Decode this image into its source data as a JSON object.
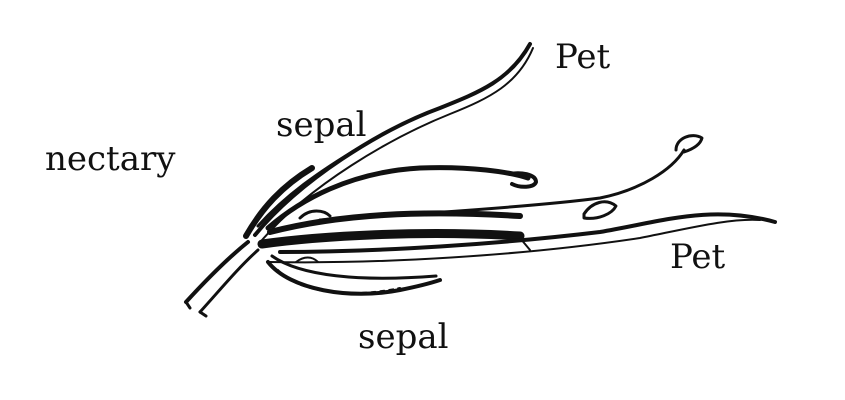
{
  "labels": {
    "pet_top": "Pet",
    "sepal_top": "sepal",
    "nectary": "nectary",
    "pet_right": "Pet",
    "sepal_bottom": "sepal"
  },
  "colors": {
    "ink": "#111111",
    "background": "#ffffff"
  }
}
